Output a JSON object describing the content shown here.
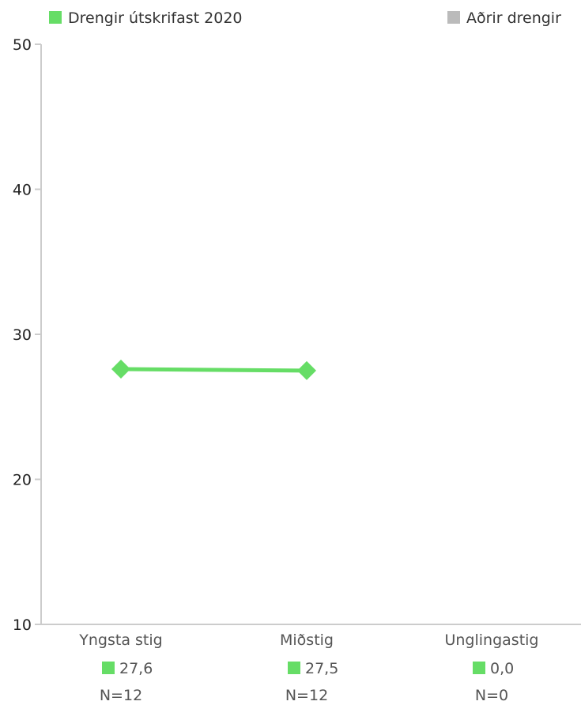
{
  "chart_data": {
    "type": "line",
    "categories": [
      "Yngsta stig",
      "Miðstig",
      "Unglingastig"
    ],
    "series": [
      {
        "name": "Drengir útskrifast 2020",
        "color": "#66dd66",
        "values": [
          27.6,
          27.5,
          null
        ],
        "display_values": [
          "27,6",
          "27,5",
          "0,0"
        ],
        "n_labels": [
          "N=12",
          "N=12",
          "N=0"
        ]
      },
      {
        "name": "Aðrir drengir",
        "color": "#bbbbbb",
        "values": [
          null,
          null,
          null
        ]
      }
    ],
    "ylim": [
      10,
      50
    ],
    "yticks": [
      10,
      20,
      30,
      40,
      50
    ],
    "marker": "diamond",
    "legend_position": "top",
    "grid": false
  }
}
